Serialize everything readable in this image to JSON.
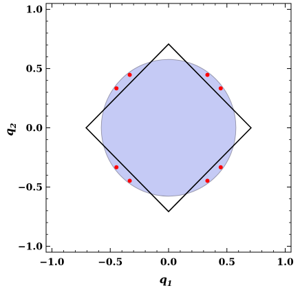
{
  "chart_data": {
    "type": "scatter",
    "title": "",
    "xlabel": "q",
    "xlabel_sub": "1",
    "ylabel": "q",
    "ylabel_sub": "2",
    "xlim": [
      -1.05,
      1.05
    ],
    "ylim": [
      -1.05,
      1.05
    ],
    "x_ticks": [
      -1.0,
      -0.5,
      0.0,
      0.5,
      1.0
    ],
    "x_tick_labels": [
      "−1.0",
      "−0.5",
      "0.0",
      "0.5",
      "1.0"
    ],
    "y_ticks": [
      -1.0,
      -0.5,
      0.0,
      0.5,
      1.0
    ],
    "y_tick_labels": [
      "−1.0",
      "−0.5",
      "0.0",
      "0.5",
      "1.0"
    ],
    "grid": false,
    "disk": {
      "center": [
        0,
        0
      ],
      "radius": 0.577,
      "fill": "#c5caf5",
      "stroke": "#9a9ab0"
    },
    "square": {
      "vertices": [
        [
          0.7071,
          0
        ],
        [
          0,
          0.7071
        ],
        [
          -0.7071,
          0
        ],
        [
          0,
          -0.7071
        ]
      ],
      "stroke": "#000000"
    },
    "points": {
      "color": "#ff0000",
      "values": [
        [
          -0.333,
          0.447
        ],
        [
          0.333,
          0.447
        ],
        [
          -0.447,
          0.333
        ],
        [
          0.447,
          0.333
        ],
        [
          -0.447,
          -0.333
        ],
        [
          0.447,
          -0.333
        ],
        [
          -0.333,
          -0.447
        ],
        [
          0.333,
          -0.447
        ]
      ]
    }
  }
}
